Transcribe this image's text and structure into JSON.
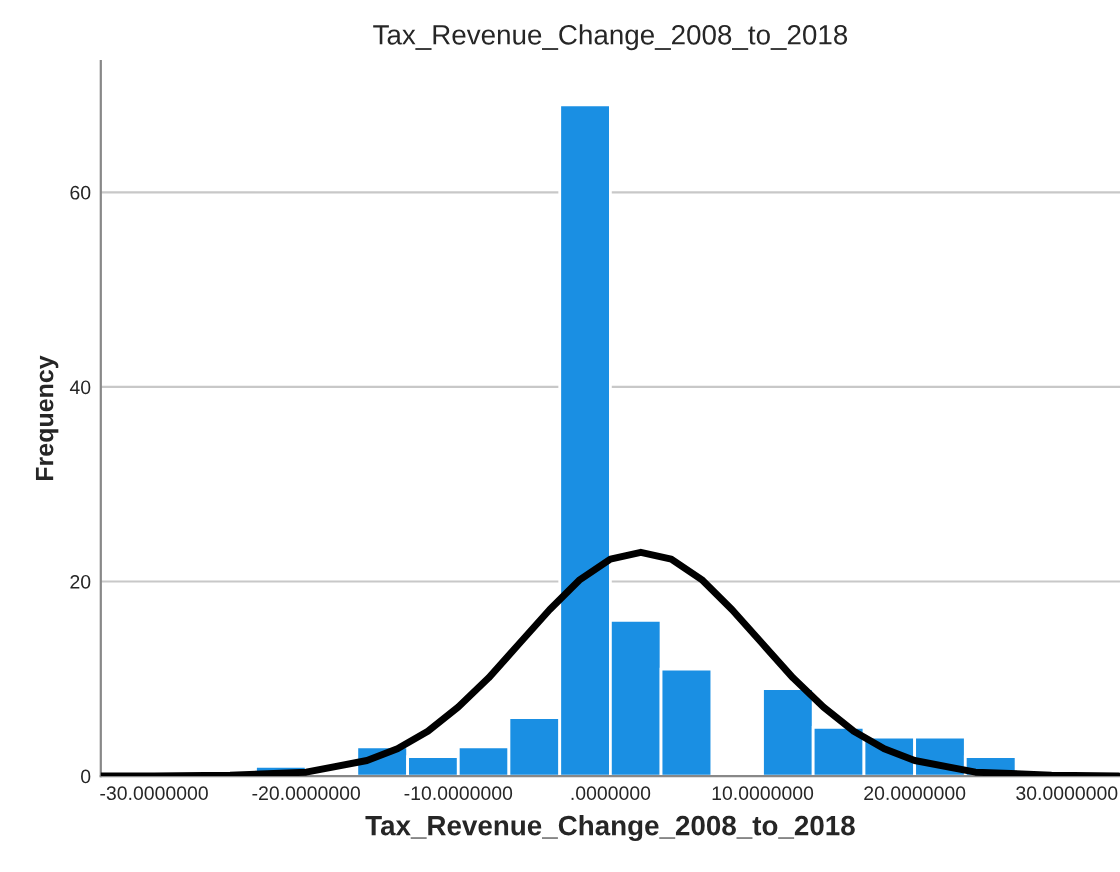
{
  "chart_data": {
    "type": "histogram",
    "title": "Tax_Revenue_Change_2008_to_2018",
    "xlabel": "Tax_Revenue_Change_2008_to_2018",
    "ylabel": "Frequency",
    "series": [
      {
        "color": "#1a8fe3",
        "bins": [
          -23.33,
          -20,
          -16.67,
          -13.33,
          -10,
          -6.67,
          -3.33,
          0,
          3.33,
          6.67,
          10,
          13.33,
          16.67,
          20,
          23.33,
          26.67
        ],
        "values": [
          1,
          0,
          3,
          2,
          3,
          6,
          69,
          16,
          11,
          0,
          9,
          5,
          4,
          4,
          2
        ]
      },
      {
        "type": "line",
        "color": "#000000",
        "x": [
          -33.5,
          -30,
          -25,
          -20,
          -16,
          -14,
          -12,
          -10,
          -8,
          -6,
          -4,
          -2,
          0,
          2,
          4,
          6,
          8,
          10,
          12,
          14,
          16,
          18,
          20,
          24,
          29,
          33.4
        ],
        "values": [
          0,
          0,
          0.1,
          0.4,
          1.6,
          2.8,
          4.6,
          7.1,
          10.1,
          13.6,
          17.1,
          20.2,
          22.3,
          23,
          22.3,
          20.2,
          17.1,
          13.6,
          10.1,
          7.1,
          4.6,
          2.8,
          1.6,
          0.4,
          0.1,
          0
        ]
      }
    ],
    "xlim": [
      -33.5,
      33.5
    ],
    "ylim": [
      0,
      73.5
    ],
    "xticks": [
      {
        "value": -30,
        "label": "-30.0000000"
      },
      {
        "value": -20,
        "label": "-20.0000000"
      },
      {
        "value": -10,
        "label": "-10.0000000"
      },
      {
        "value": 0,
        "label": ".0000000"
      },
      {
        "value": 10,
        "label": "10.0000000"
      },
      {
        "value": 20,
        "label": "20.0000000"
      },
      {
        "value": 30,
        "label": "30.0000000"
      }
    ],
    "yticks": [
      0,
      20,
      40,
      60
    ],
    "grid": "y"
  }
}
